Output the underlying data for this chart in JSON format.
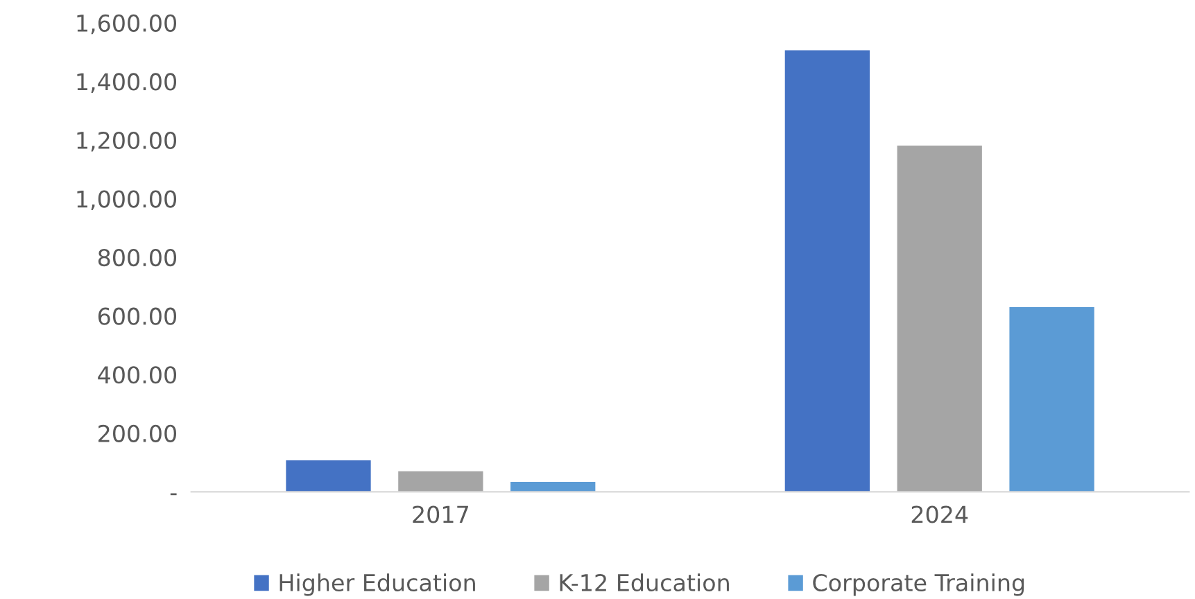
{
  "chart_data": {
    "type": "bar",
    "categories": [
      "2017",
      "2024"
    ],
    "series": [
      {
        "name": "Higher Education",
        "color": "#4472c4",
        "values": [
          107,
          1506
        ]
      },
      {
        "name": "K-12 Education",
        "color": "#a5a5a5",
        "values": [
          70,
          1181
        ]
      },
      {
        "name": "Corporate Training",
        "color": "#5b9bd5",
        "values": [
          34,
          630
        ]
      }
    ],
    "ylim": [
      0,
      1600
    ],
    "yticks": [
      {
        "value": 0,
        "label": "-"
      },
      {
        "value": 200,
        "label": "200.00"
      },
      {
        "value": 400,
        "label": "400.00"
      },
      {
        "value": 600,
        "label": "600.00"
      },
      {
        "value": 800,
        "label": "800.00"
      },
      {
        "value": 1000,
        "label": "1,000.00"
      },
      {
        "value": 1200,
        "label": "1,200.00"
      },
      {
        "value": 1400,
        "label": "1,400.00"
      },
      {
        "value": 1600,
        "label": "1,600.00"
      }
    ],
    "grid": false,
    "legend": "bottom"
  }
}
